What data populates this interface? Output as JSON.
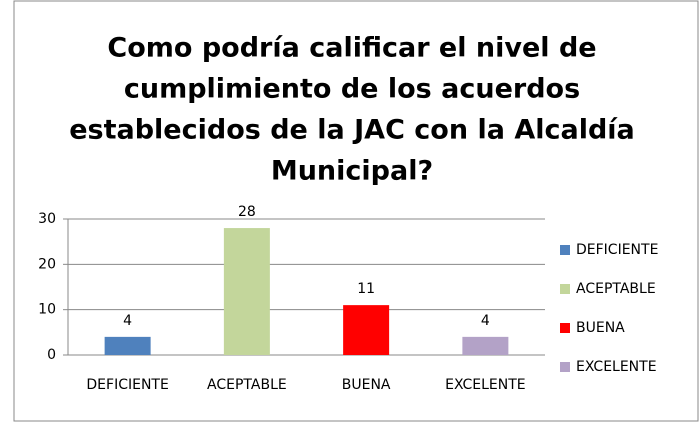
{
  "chart_data": {
    "type": "bar",
    "title": [
      "Como podría calificar el nivel de",
      "cumplimiento de los acuerdos",
      "establecidos de la JAC con la Alcaldía",
      "Municipal?"
    ],
    "categories": [
      "DEFICIENTE",
      "ACEPTABLE",
      "BUENA",
      "EXCELENTE"
    ],
    "values": [
      4,
      28,
      11,
      4
    ],
    "colors": [
      "#4f81bd",
      "#c3d69b",
      "#ff0000",
      "#b3a2c7"
    ],
    "ylim": [
      0,
      30
    ],
    "yticks": [
      0,
      10,
      20,
      30
    ],
    "grid": true,
    "legend": "right"
  }
}
